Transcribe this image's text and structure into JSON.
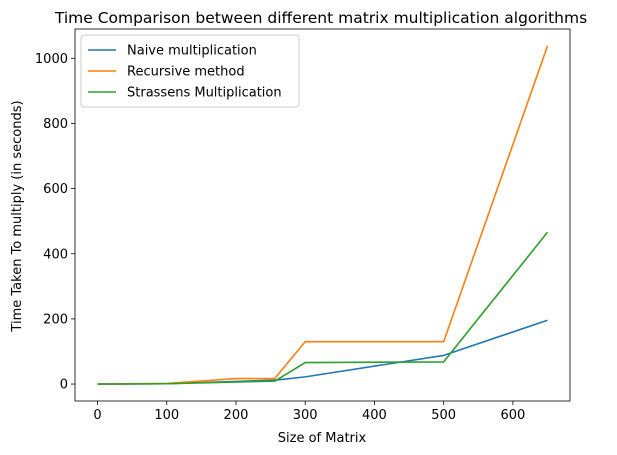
{
  "chart_data": {
    "type": "line",
    "title": "Time Comparison between different matrix multiplication algorithms",
    "xlabel": "Size of Matrix",
    "ylabel": "Time Taken To multiply (in seconds)",
    "x": [
      0,
      100,
      256,
      300,
      500,
      650
    ],
    "xlim": [
      -32.5,
      682.5
    ],
    "ylim": [
      -52,
      1090
    ],
    "xticks": [
      0,
      100,
      200,
      300,
      400,
      500,
      600
    ],
    "yticks": [
      0,
      200,
      400,
      600,
      800,
      1000
    ],
    "grid": false,
    "legend_position": "top-left",
    "series": [
      {
        "name": "Naive multiplication",
        "color": "#1f77b4",
        "x": [
          0,
          100,
          256,
          300,
          500,
          650
        ],
        "values": [
          0,
          1,
          12,
          22,
          88,
          196
        ]
      },
      {
        "name": "Recursive method",
        "color": "#ff7f0e",
        "x": [
          0,
          100,
          200,
          256,
          300,
          500,
          650
        ],
        "values": [
          0,
          2,
          17,
          17,
          130,
          130,
          1038
        ]
      },
      {
        "name": "Strassens Multiplication",
        "color": "#2ca02c",
        "x": [
          0,
          100,
          256,
          300,
          500,
          650
        ],
        "values": [
          0,
          1,
          9,
          66,
          68,
          466
        ]
      }
    ]
  }
}
